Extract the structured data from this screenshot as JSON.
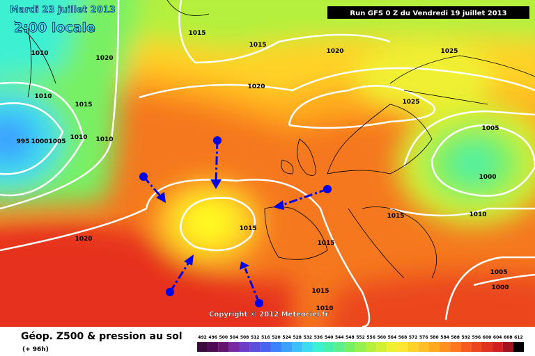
{
  "header": {
    "date": "Mardi 23 juillet 2013",
    "time": "2:00 locale",
    "run": "Run GFS 0 Z du Vendredi 19 juillet 2013"
  },
  "copyright": "Copyright © 2012 Meteociel.fr",
  "isobar_labels": [
    "1015",
    "1015",
    "1020",
    "1025",
    "1010",
    "1020",
    "1020",
    "1010",
    "1015",
    "1025",
    "1005",
    "995",
    "1000",
    "1005",
    "1010",
    "1010",
    "1000",
    "1015",
    "1015",
    "1010",
    "1020",
    "1015",
    "1005",
    "1000",
    "1015",
    "1010"
  ],
  "legend": {
    "title": "Géop. Z500 & pression au sol",
    "subtitle": "(+ 96h)",
    "scale": [
      492,
      496,
      500,
      504,
      508,
      512,
      516,
      520,
      524,
      528,
      532,
      536,
      540,
      544,
      548,
      552,
      556,
      560,
      564,
      568,
      572,
      576,
      580,
      584,
      588,
      592,
      596,
      600,
      604,
      608,
      612
    ],
    "colors": [
      "#3c0a3c",
      "#500a55",
      "#64146e",
      "#7828a0",
      "#6e3cc8",
      "#5a50dc",
      "#4664f0",
      "#3c82ff",
      "#3ca0ff",
      "#3cbeff",
      "#3cdcf0",
      "#3cf0d2",
      "#46f0aa",
      "#5af08c",
      "#78f064",
      "#96f050",
      "#b4f03c",
      "#d2f032",
      "#f0f032",
      "#ffe632",
      "#ffd228",
      "#ffbe28",
      "#ffaa1e",
      "#ff911e",
      "#ff781e",
      "#f55a1e",
      "#eb461e",
      "#e1321e",
      "#d21e1e",
      "#a0141e",
      "#000000"
    ]
  }
}
